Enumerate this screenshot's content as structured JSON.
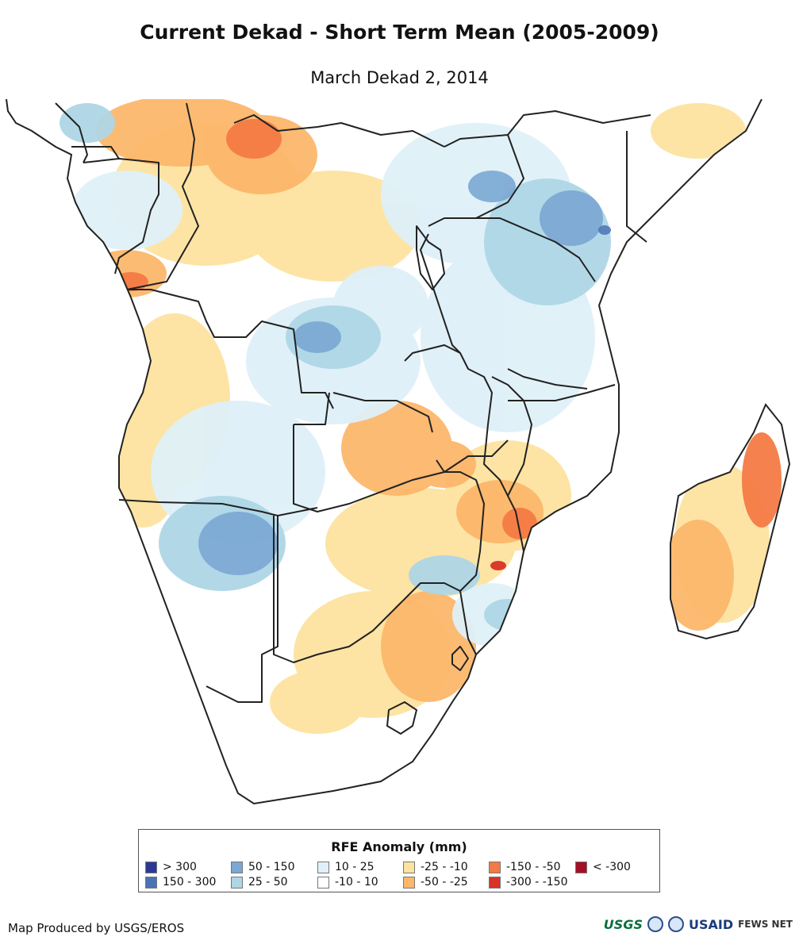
{
  "header": {
    "title": "Current Dekad - Short Term Mean (2005-2009)",
    "subtitle": "March Dekad 2, 2014"
  },
  "legend": {
    "title": "RFE Anomaly (mm)",
    "items": [
      {
        "label": "> 300",
        "color": "#2c3994"
      },
      {
        "label": "150 - 300",
        "color": "#4a73b5"
      },
      {
        "label": "50 - 150",
        "color": "#7aa7d3"
      },
      {
        "label": "25 - 50",
        "color": "#aed6e6"
      },
      {
        "label": "10 - 25",
        "color": "#dff0f8"
      },
      {
        "label": "-10 - 10",
        "color": "#ffffff"
      },
      {
        "label": "-25 - -10",
        "color": "#fde3a0"
      },
      {
        "label": "-50 - -25",
        "color": "#fcb76b"
      },
      {
        "label": "-150 - -50",
        "color": "#f47a45"
      },
      {
        "label": "-300 - -150",
        "color": "#d93226"
      },
      {
        "label": "< -300",
        "color": "#a50f26"
      }
    ]
  },
  "footer": {
    "credit": "Map Produced by USGS/EROS",
    "logos": {
      "usgs": "USGS",
      "usaid": "USAID",
      "fews": "FEWS NET"
    }
  }
}
